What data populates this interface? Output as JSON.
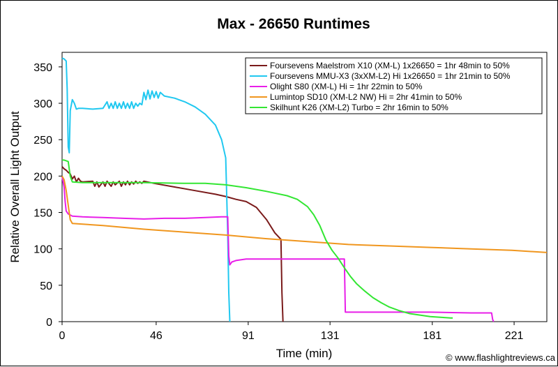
{
  "chart_data": {
    "type": "line",
    "title": "Max - 26650 Runtimes",
    "xlabel": "Time (min)",
    "ylabel": "Relative Overall Light Output",
    "xlim": [
      0,
      237
    ],
    "ylim": [
      0,
      370
    ],
    "xticks": [
      0,
      46,
      91,
      131,
      181,
      221
    ],
    "yticks": [
      0,
      50,
      100,
      150,
      200,
      250,
      300,
      350
    ],
    "grid": false,
    "legend_position": "top-right",
    "watermark": "© www.flashlightreviews.ca",
    "series": [
      {
        "name": "Foursevens Maelstrom X10 (XM-L) 1x26650 = 1hr 48min to 50%",
        "color": "#7a1a1a",
        "x": [
          0,
          1,
          2,
          3,
          4,
          5,
          6,
          7,
          8,
          9,
          10,
          15,
          16,
          17,
          18,
          20,
          21,
          22,
          24,
          25,
          26,
          28,
          29,
          30,
          31,
          32,
          33,
          34,
          35,
          36,
          37,
          38,
          39,
          40,
          45,
          55,
          65,
          75,
          80,
          85,
          90,
          95,
          100,
          104,
          107,
          107.5,
          108
        ],
        "y": [
          213,
          210,
          208,
          205,
          203,
          196,
          200,
          192,
          197,
          193,
          192,
          193,
          186,
          192,
          185,
          192,
          186,
          193,
          186,
          192,
          188,
          193,
          186,
          192,
          188,
          193,
          188,
          192,
          189,
          193,
          190,
          192,
          190,
          193,
          190,
          185,
          180,
          175,
          172,
          168,
          165,
          157,
          140,
          122,
          113,
          40,
          0
        ]
      },
      {
        "name": "Foursevens MMU-X3 (3xXM-L2) Hi 1x26650 = 1hr 21min to 50%",
        "color": "#20c8f0",
        "x": [
          0,
          1,
          2,
          2.5,
          3,
          3.5,
          4,
          5,
          6,
          7,
          8,
          10,
          15,
          20,
          22,
          23,
          24,
          25,
          26,
          27,
          28,
          29,
          30,
          31,
          32,
          33,
          34,
          35,
          36,
          37,
          38,
          39,
          40,
          41,
          42,
          43,
          44,
          45,
          46,
          47,
          48,
          50,
          55,
          60,
          65,
          70,
          75,
          78,
          80,
          81,
          81.5,
          82
        ],
        "y": [
          362,
          361,
          358,
          320,
          240,
          232,
          290,
          305,
          300,
          292,
          293,
          293,
          292,
          293,
          302,
          293,
          300,
          293,
          302,
          293,
          300,
          293,
          302,
          293,
          300,
          293,
          302,
          293,
          300,
          296,
          300,
          298,
          315,
          305,
          318,
          306,
          317,
          308,
          316,
          307,
          315,
          310,
          307,
          302,
          295,
          285,
          270,
          250,
          225,
          120,
          40,
          0
        ]
      },
      {
        "name": "Olight S80 (XM-L) Hi = 1hr 22min to 50%",
        "color": "#e81ee8",
        "x": [
          0,
          1,
          1.5,
          2,
          3,
          5,
          10,
          20,
          30,
          40,
          50,
          60,
          70,
          78,
          81,
          81.5,
          82,
          83,
          85,
          90,
          100,
          110,
          120,
          130,
          135,
          138,
          138.5,
          140,
          160,
          180,
          200,
          210,
          210.5,
          211
        ],
        "y": [
          199,
          185,
          165,
          152,
          148,
          145,
          144,
          143,
          142,
          141,
          142,
          142,
          143,
          144,
          144,
          90,
          78,
          82,
          84,
          86,
          86,
          86,
          86,
          86,
          86,
          86,
          13,
          13,
          13,
          13,
          12,
          12,
          3,
          0
        ]
      },
      {
        "name": "Lumintop SD10 (XM-L2 NW) Hi = 2hr 41min to 50%",
        "color": "#f0961e",
        "x": [
          0,
          1,
          2,
          3,
          4,
          5,
          20,
          40,
          60,
          80,
          100,
          120,
          140,
          160,
          180,
          200,
          220,
          237
        ],
        "y": [
          200,
          195,
          180,
          160,
          140,
          135,
          132,
          127,
          123,
          119,
          114,
          110,
          106,
          104,
          102,
          100,
          98,
          95
        ]
      },
      {
        "name": "Skilhunt K26 (XM-L2) Turbo = 2hr 16min to 50%",
        "color": "#33e633",
        "x": [
          0,
          1,
          2,
          3,
          4,
          5,
          10,
          20,
          40,
          60,
          70,
          80,
          90,
          100,
          110,
          115,
          120,
          123,
          126,
          129,
          132,
          135,
          138,
          141,
          144,
          148,
          152,
          156,
          160,
          165,
          170,
          175,
          180,
          185,
          190,
          191
        ],
        "y": [
          222,
          222,
          221,
          220,
          200,
          192,
          191,
          191,
          191,
          190,
          190,
          188,
          184,
          179,
          173,
          168,
          158,
          147,
          132,
          112,
          98,
          87,
          74,
          62,
          52,
          42,
          33,
          26,
          20,
          15,
          11,
          9,
          7,
          6,
          5,
          5
        ]
      }
    ]
  }
}
